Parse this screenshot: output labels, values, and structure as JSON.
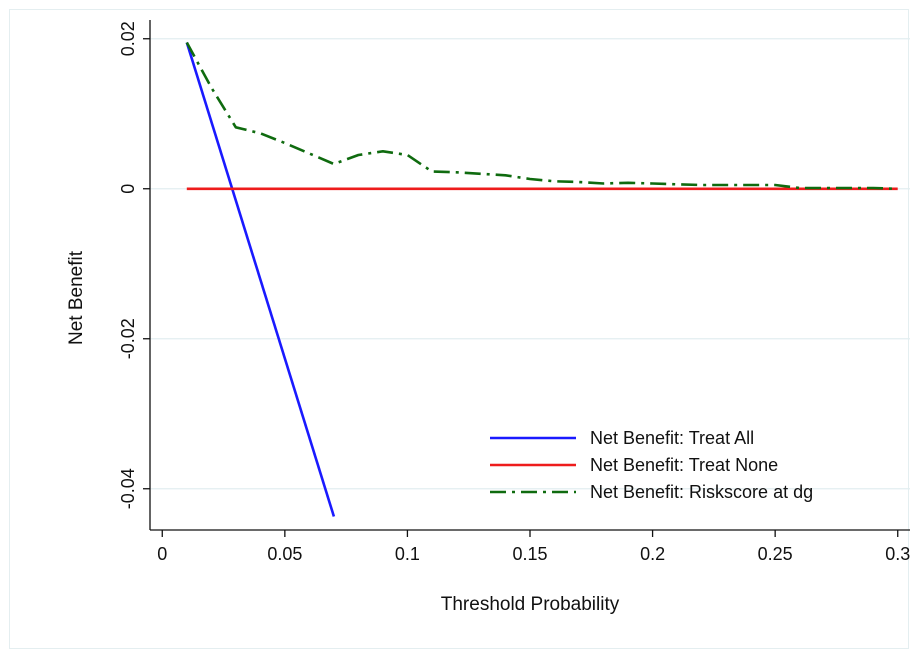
{
  "chart_data": {
    "type": "line",
    "title": "",
    "xlabel": "Threshold Probability",
    "ylabel": "Net Benefit",
    "xlim": [
      -0.005,
      0.305
    ],
    "ylim": [
      -0.0455,
      0.0225
    ],
    "xticks": [
      0,
      0.05,
      0.1,
      0.15,
      0.2,
      0.25,
      0.3
    ],
    "xtick_labels": [
      "0",
      "0.05",
      "0.1",
      "0.15",
      "0.2",
      "0.25",
      "0.3"
    ],
    "yticks": [
      0.02,
      0,
      -0.02,
      -0.04
    ],
    "ytick_labels": [
      "0.02",
      "0",
      "-0.02",
      "-0.04"
    ],
    "grid": "horizontal",
    "legend_position": "bottom-right",
    "series": [
      {
        "name": "Net Benefit: Treat All",
        "color": "#1a1aff",
        "dash": "solid",
        "x": [
          0.01,
          0.07
        ],
        "y": [
          0.0195,
          -0.0437
        ]
      },
      {
        "name": "Net Benefit: Treat None",
        "color": "#ee1c1c",
        "dash": "solid",
        "x": [
          0.01,
          0.3
        ],
        "y": [
          0,
          0
        ]
      },
      {
        "name": "Net Benefit: Riskscore at dg",
        "color": "#0f6b0f",
        "dash": "dashdot",
        "x": [
          0.01,
          0.02,
          0.03,
          0.04,
          0.05,
          0.06,
          0.07,
          0.08,
          0.09,
          0.1,
          0.11,
          0.12,
          0.13,
          0.14,
          0.15,
          0.16,
          0.17,
          0.18,
          0.19,
          0.2,
          0.21,
          0.22,
          0.23,
          0.24,
          0.25,
          0.26,
          0.27,
          0.28,
          0.29,
          0.3
        ],
        "y": [
          0.0195,
          0.0135,
          0.0082,
          0.0074,
          0.0061,
          0.0047,
          0.0033,
          0.0045,
          0.005,
          0.0045,
          0.0023,
          0.0022,
          0.002,
          0.0018,
          0.0013,
          0.001,
          0.0009,
          0.0007,
          0.0008,
          0.0007,
          0.0006,
          0.0005,
          0.0005,
          0.0005,
          0.0005,
          0.0001,
          0.0001,
          0.0001,
          0.0001,
          0.0
        ]
      }
    ]
  }
}
